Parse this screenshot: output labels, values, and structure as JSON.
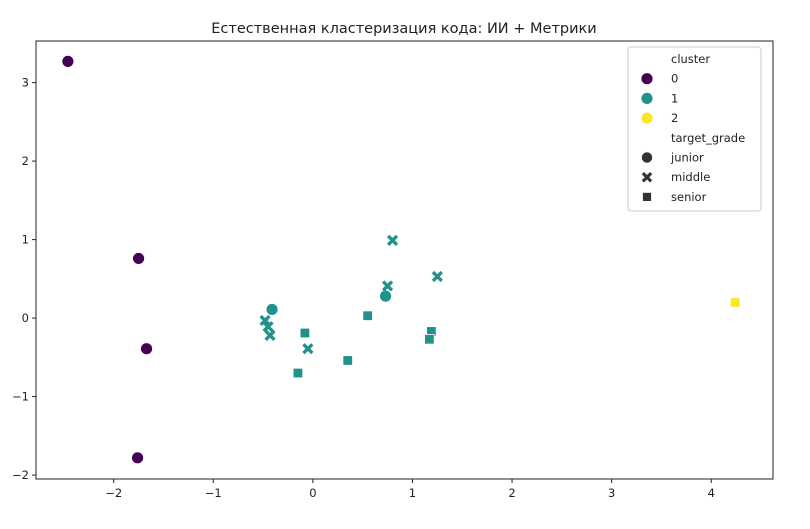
{
  "chart_data": {
    "type": "scatter",
    "title": "Естественная кластеризация кода: ИИ + Метрики",
    "xlabel": "",
    "ylabel": "",
    "xlim": [
      -2.78,
      4.62
    ],
    "ylim": [
      -2.05,
      3.53
    ],
    "x_ticks": [
      -2,
      -1,
      0,
      1,
      2,
      3,
      4
    ],
    "x_tick_labels": [
      "−2",
      "−1",
      "0",
      "1",
      "2",
      "3",
      "4"
    ],
    "y_ticks": [
      -2,
      -1,
      0,
      1,
      2,
      3
    ],
    "y_tick_labels": [
      "−2",
      "−1",
      "0",
      "1",
      "2",
      "3"
    ],
    "grid": false,
    "legend_position": "upper right",
    "legend": {
      "hue_title": "cluster",
      "hue_entries": [
        {
          "label": "0",
          "color": "#440154"
        },
        {
          "label": "1",
          "color": "#21918c"
        },
        {
          "label": "2",
          "color": "#fde725"
        }
      ],
      "style_title": "target_grade",
      "style_entries": [
        {
          "label": "junior",
          "marker": "circle"
        },
        {
          "label": "middle",
          "marker": "x"
        },
        {
          "label": "senior",
          "marker": "square"
        }
      ]
    },
    "points": [
      {
        "x": -2.46,
        "y": 3.27,
        "cluster": "0",
        "grade": "junior"
      },
      {
        "x": -1.75,
        "y": 0.76,
        "cluster": "0",
        "grade": "junior"
      },
      {
        "x": -1.67,
        "y": -0.39,
        "cluster": "0",
        "grade": "junior"
      },
      {
        "x": -1.76,
        "y": -1.78,
        "cluster": "0",
        "grade": "junior"
      },
      {
        "x": -0.41,
        "y": 0.11,
        "cluster": "1",
        "grade": "junior"
      },
      {
        "x": 0.73,
        "y": 0.28,
        "cluster": "1",
        "grade": "junior"
      },
      {
        "x": -0.48,
        "y": -0.03,
        "cluster": "1",
        "grade": "middle"
      },
      {
        "x": -0.45,
        "y": -0.11,
        "cluster": "1",
        "grade": "middle"
      },
      {
        "x": -0.43,
        "y": -0.22,
        "cluster": "1",
        "grade": "middle"
      },
      {
        "x": -0.05,
        "y": -0.39,
        "cluster": "1",
        "grade": "middle"
      },
      {
        "x": 0.8,
        "y": 0.99,
        "cluster": "1",
        "grade": "middle"
      },
      {
        "x": 1.25,
        "y": 0.53,
        "cluster": "1",
        "grade": "middle"
      },
      {
        "x": 0.75,
        "y": 0.41,
        "cluster": "1",
        "grade": "middle"
      },
      {
        "x": -0.08,
        "y": -0.19,
        "cluster": "1",
        "grade": "senior"
      },
      {
        "x": -0.15,
        "y": -0.7,
        "cluster": "1",
        "grade": "senior"
      },
      {
        "x": 0.35,
        "y": -0.54,
        "cluster": "1",
        "grade": "senior"
      },
      {
        "x": 0.55,
        "y": 0.03,
        "cluster": "1",
        "grade": "senior"
      },
      {
        "x": 1.19,
        "y": -0.17,
        "cluster": "1",
        "grade": "senior"
      },
      {
        "x": 1.17,
        "y": -0.27,
        "cluster": "1",
        "grade": "senior"
      },
      {
        "x": 4.24,
        "y": 0.2,
        "cluster": "2",
        "grade": "senior"
      }
    ]
  }
}
